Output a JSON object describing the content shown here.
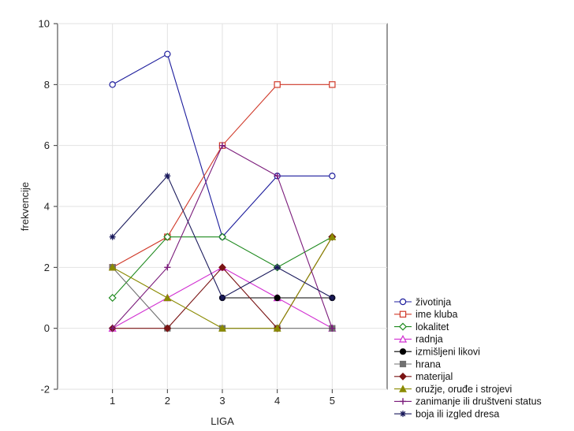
{
  "chart_data": {
    "type": "line",
    "title": "",
    "xlabel": "LIGA",
    "ylabel": "frekvencije",
    "x": [
      1,
      2,
      3,
      4,
      5
    ],
    "xlim": [
      0,
      6
    ],
    "ylim": [
      -2,
      10
    ],
    "x_ticks": [
      "1",
      "2",
      "3",
      "4",
      "5"
    ],
    "y_ticks": [
      "-2",
      "0",
      "2",
      "4",
      "6",
      "8",
      "10"
    ],
    "grid": true,
    "legend_position": "bottom-right outside",
    "series": [
      {
        "name": "životinja",
        "values": [
          8,
          9,
          3,
          5,
          5
        ],
        "color": "#1c1c9c",
        "marker": "circle-open"
      },
      {
        "name": "ime kluba",
        "values": [
          2,
          3,
          6,
          8,
          8
        ],
        "color": "#d03a2a",
        "marker": "square-open"
      },
      {
        "name": "lokalitet",
        "values": [
          1,
          3,
          3,
          2,
          3
        ],
        "color": "#1f8a1f",
        "marker": "diamond-open"
      },
      {
        "name": "radnja",
        "values": [
          0,
          1,
          2,
          1,
          0
        ],
        "color": "#d12fd1",
        "marker": "triangle-open"
      },
      {
        "name": "izmišljeni likovi",
        "values": [
          null,
          null,
          1,
          1,
          1
        ],
        "color": "#000000",
        "marker": "circle-filled"
      },
      {
        "name": "hrana",
        "values": [
          2,
          0,
          0,
          0,
          0
        ],
        "color": "#707070",
        "marker": "square-filled"
      },
      {
        "name": "materijal",
        "values": [
          0,
          0,
          2,
          0,
          3
        ],
        "color": "#7a1414",
        "marker": "diamond-filled"
      },
      {
        "name": "oružje, oruđe i strojevi",
        "values": [
          2,
          1,
          0,
          0,
          3
        ],
        "color": "#8a8a00",
        "marker": "triangle-filled"
      },
      {
        "name": "zanimanje ili društveni status",
        "values": [
          0,
          2,
          6,
          5,
          0
        ],
        "color": "#7a1a7a",
        "marker": "plus"
      },
      {
        "name": "boja ili izgled dresa",
        "values": [
          3,
          5,
          1,
          2,
          1
        ],
        "color": "#1a1a5c",
        "marker": "asterisk"
      }
    ]
  }
}
